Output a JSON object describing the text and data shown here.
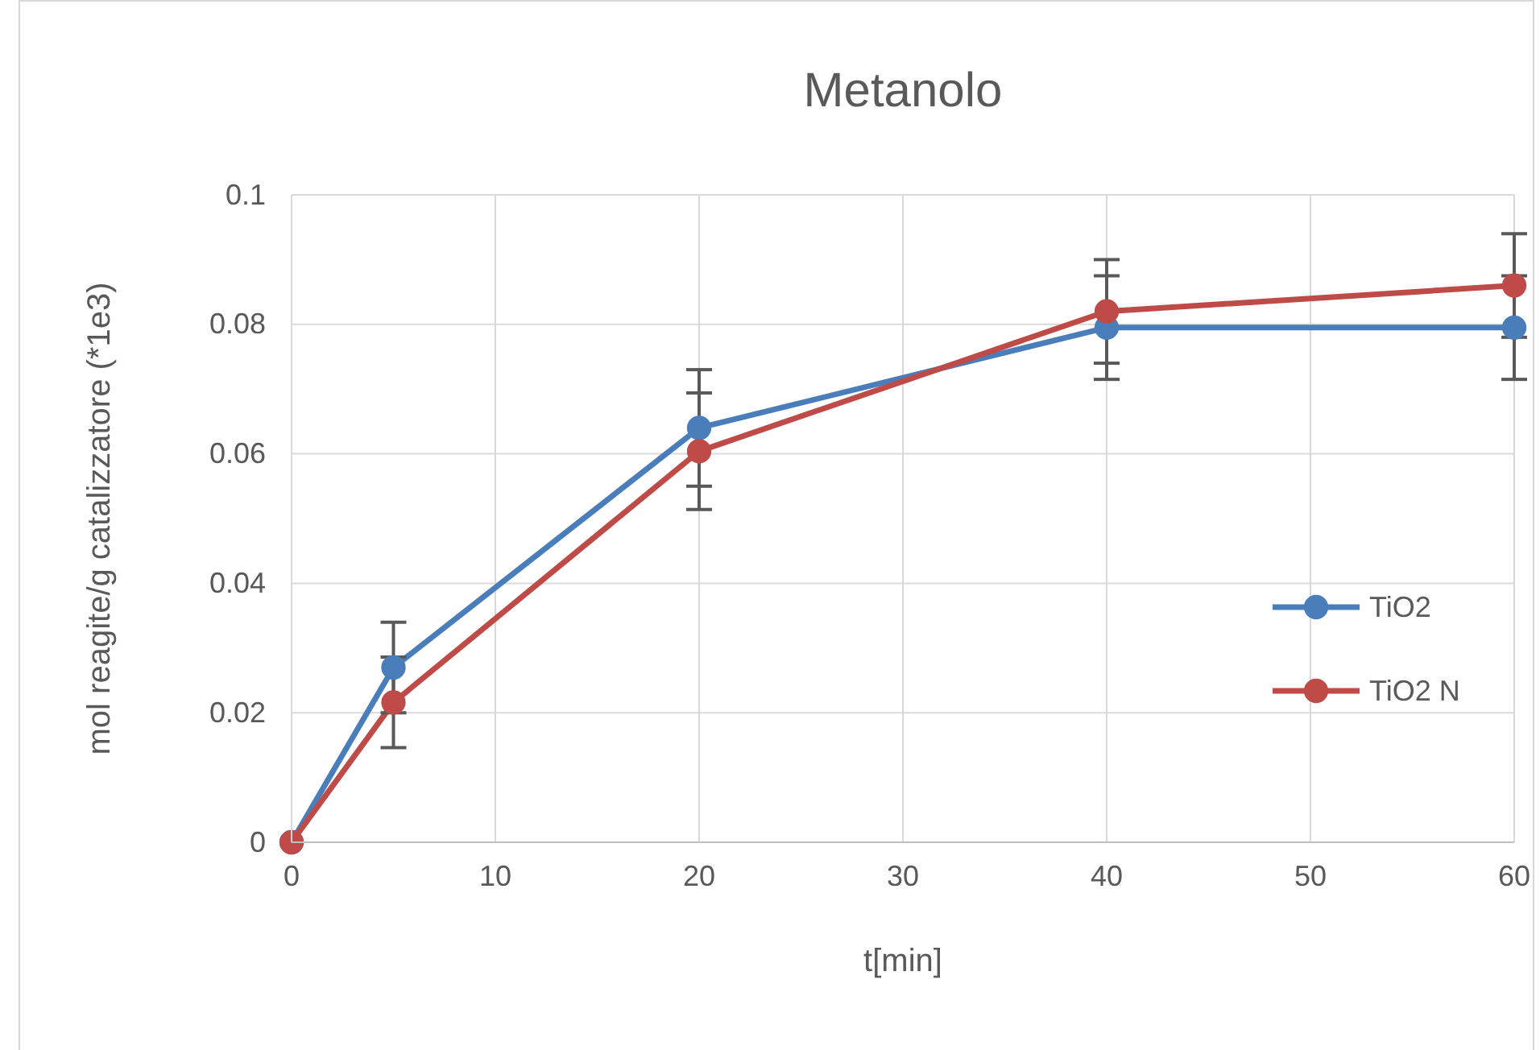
{
  "chart_data": {
    "type": "line",
    "title": "Metanolo",
    "xlabel": "t[min]",
    "ylabel": "mol reagite/g catalizzatore (*1e3)",
    "x": [
      0,
      5,
      20,
      40,
      60
    ],
    "xlim": [
      0,
      60
    ],
    "xticks": [
      0,
      10,
      20,
      30,
      40,
      50,
      60
    ],
    "ylim": [
      0,
      0.1
    ],
    "yticks": [
      {
        "value": 0,
        "label": "0"
      },
      {
        "value": 0.02,
        "label": "0.02"
      },
      {
        "value": 0.04,
        "label": "0.04"
      },
      {
        "value": 0.06,
        "label": "0.06"
      },
      {
        "value": 0.08,
        "label": "0.08"
      },
      {
        "value": 0.1,
        "label": "0.1"
      }
    ],
    "series": [
      {
        "name": "TiO2",
        "color": "#4a7ebb",
        "values": [
          0,
          0.027,
          0.064,
          0.0795,
          0.0795
        ],
        "errors": [
          null,
          0.007,
          0.009,
          0.008,
          0.008
        ]
      },
      {
        "name": "TiO2 N",
        "color": "#be4b48",
        "values": [
          0,
          0.0216,
          0.0604,
          0.082,
          0.086
        ],
        "errors": [
          null,
          0.007,
          0.009,
          0.008,
          0.008
        ]
      }
    ],
    "grid": true,
    "legend": "right",
    "marker": "circle",
    "line_style": "solid"
  }
}
